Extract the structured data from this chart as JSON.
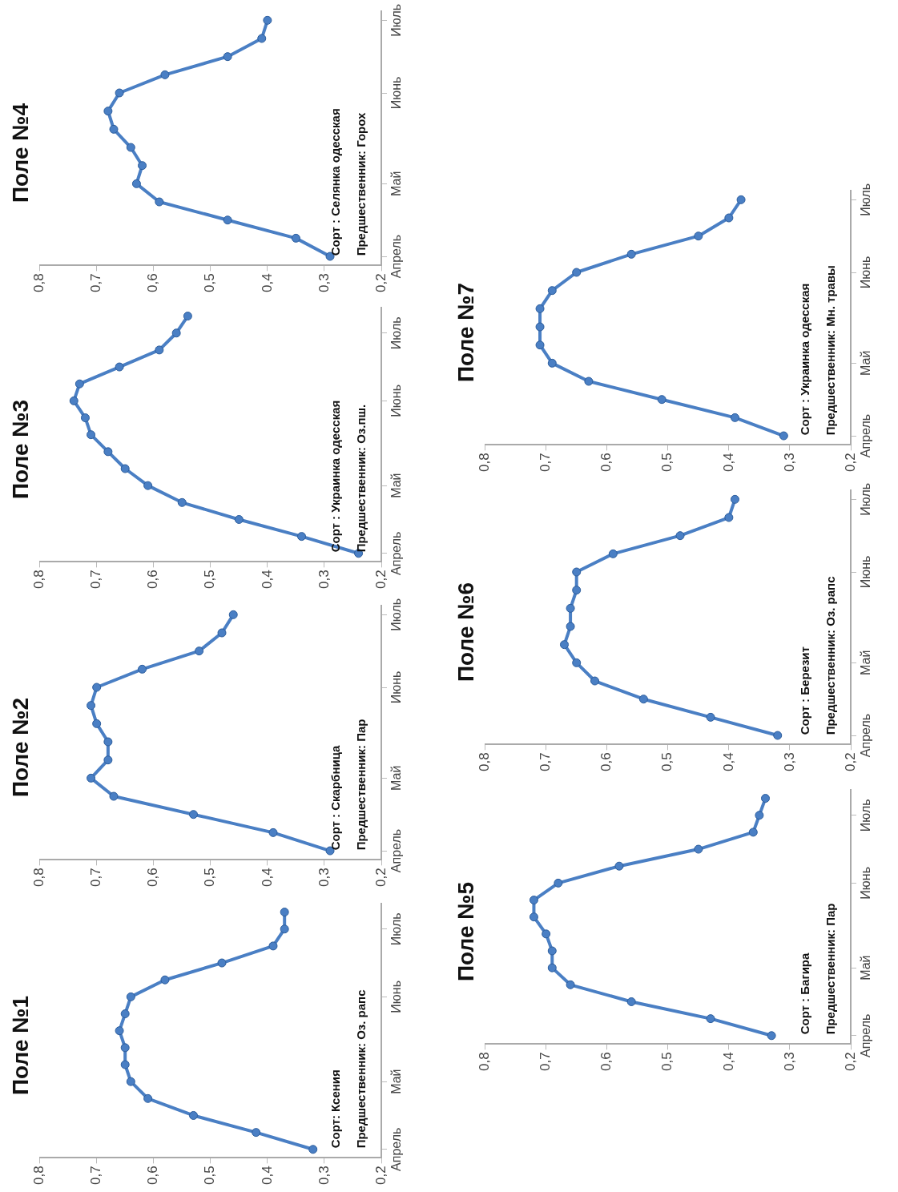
{
  "chart_data": [
    {
      "type": "line",
      "orientation": "horizontal",
      "title": "Поле №1",
      "annotations": [
        "Сорт: Ксения",
        "Предшественник: Оз. рапс"
      ],
      "categories": [
        null,
        "Июль",
        null,
        null,
        null,
        "Июнь",
        null,
        null,
        null,
        null,
        "Май",
        null,
        null,
        null,
        "Апрель"
      ],
      "xlim": [
        0.8,
        0.2
      ],
      "xticks": [
        {
          "value": 0.2,
          "label": "0,2"
        },
        {
          "value": 0.3,
          "label": "0,3"
        },
        {
          "value": 0.4,
          "label": "0,4"
        },
        {
          "value": 0.5,
          "label": "0,5"
        },
        {
          "value": 0.6,
          "label": "0,6"
        },
        {
          "value": 0.7,
          "label": "0,7"
        },
        {
          "value": 0.8,
          "label": "0,8"
        }
      ],
      "marker": "circle",
      "color": "#4a7fc4",
      "values": [
        0.37,
        0.37,
        0.39,
        0.48,
        0.58,
        0.64,
        0.65,
        0.66,
        0.65,
        0.65,
        0.64,
        0.61,
        0.53,
        0.42,
        0.32
      ]
    },
    {
      "type": "line",
      "orientation": "horizontal",
      "title": "Поле №2",
      "annotations": [
        "Сорт : Скарбница",
        "Предшественник: Пар"
      ],
      "categories": [
        "Июль",
        null,
        null,
        null,
        "Июнь",
        null,
        null,
        null,
        null,
        "Май",
        null,
        null,
        null,
        "Апрель"
      ],
      "xlim": [
        0.8,
        0.2
      ],
      "xticks": [
        {
          "value": 0.2,
          "label": "0,2"
        },
        {
          "value": 0.3,
          "label": "0,3"
        },
        {
          "value": 0.4,
          "label": "0,4"
        },
        {
          "value": 0.5,
          "label": "0,5"
        },
        {
          "value": 0.6,
          "label": "0,6"
        },
        {
          "value": 0.7,
          "label": "0,7"
        },
        {
          "value": 0.8,
          "label": "0,8"
        }
      ],
      "marker": "circle",
      "color": "#4a7fc4",
      "values": [
        0.46,
        0.48,
        0.52,
        0.62,
        0.7,
        0.71,
        0.7,
        0.68,
        0.68,
        0.71,
        0.67,
        0.53,
        0.39,
        0.29
      ]
    },
    {
      "type": "line",
      "orientation": "horizontal",
      "title": "Поле №3",
      "annotations": [
        "Сорт : Украинка одесская",
        "Предшественник: Оз.пш."
      ],
      "categories": [
        null,
        "Июль",
        null,
        null,
        null,
        "Июнь",
        null,
        null,
        null,
        null,
        "Май",
        null,
        null,
        null,
        "Апрель"
      ],
      "xlim": [
        0.8,
        0.2
      ],
      "xticks": [
        {
          "value": 0.2,
          "label": "0,2"
        },
        {
          "value": 0.3,
          "label": "0,3"
        },
        {
          "value": 0.4,
          "label": "0,4"
        },
        {
          "value": 0.5,
          "label": "0,5"
        },
        {
          "value": 0.6,
          "label": "0,6"
        },
        {
          "value": 0.7,
          "label": "0,7"
        },
        {
          "value": 0.8,
          "label": "0,8"
        }
      ],
      "marker": "circle",
      "color": "#4a7fc4",
      "values": [
        0.54,
        0.56,
        0.59,
        0.66,
        0.73,
        0.74,
        0.72,
        0.71,
        0.68,
        0.65,
        0.61,
        0.55,
        0.45,
        0.34,
        0.24
      ]
    },
    {
      "type": "line",
      "orientation": "horizontal",
      "title": "Поле №4",
      "annotations": [
        "Сорт : Селянка одесская",
        "Предшественник: Горох"
      ],
      "categories": [
        "Июль",
        null,
        null,
        null,
        "Июнь",
        null,
        null,
        null,
        null,
        "Май",
        null,
        null,
        null,
        "Апрель"
      ],
      "xlim": [
        0.8,
        0.2
      ],
      "xticks": [
        {
          "value": 0.2,
          "label": "0,2"
        },
        {
          "value": 0.3,
          "label": "0,3"
        },
        {
          "value": 0.4,
          "label": "0,4"
        },
        {
          "value": 0.5,
          "label": "0,5"
        },
        {
          "value": 0.6,
          "label": "0,6"
        },
        {
          "value": 0.7,
          "label": "0,7"
        },
        {
          "value": 0.8,
          "label": "0,8"
        }
      ],
      "marker": "circle",
      "color": "#4a7fc4",
      "values": [
        0.4,
        0.41,
        0.47,
        0.58,
        0.66,
        0.68,
        0.67,
        0.64,
        0.62,
        0.63,
        0.59,
        0.47,
        0.35,
        0.29
      ]
    },
    {
      "type": "line",
      "orientation": "horizontal",
      "title": "Поле №5",
      "annotations": [
        "Сорт : Багира",
        "Предшественник: Пар"
      ],
      "categories": [
        null,
        "Июль",
        null,
        null,
        null,
        "Июнь",
        null,
        null,
        null,
        null,
        "Май",
        null,
        null,
        null,
        "Апрель"
      ],
      "xlim": [
        0.8,
        0.2
      ],
      "xticks": [
        {
          "value": 0.2,
          "label": "0,2"
        },
        {
          "value": 0.3,
          "label": "0,3"
        },
        {
          "value": 0.4,
          "label": "0,4"
        },
        {
          "value": 0.5,
          "label": "0,5"
        },
        {
          "value": 0.6,
          "label": "0,6"
        },
        {
          "value": 0.7,
          "label": "0,7"
        },
        {
          "value": 0.8,
          "label": "0,8"
        }
      ],
      "marker": "circle",
      "color": "#4a7fc4",
      "values": [
        0.34,
        0.35,
        0.36,
        0.45,
        0.58,
        0.68,
        0.72,
        0.72,
        0.7,
        0.69,
        0.69,
        0.66,
        0.56,
        0.43,
        0.33
      ]
    },
    {
      "type": "line",
      "orientation": "horizontal",
      "title": "Поле №6",
      "annotations": [
        "Сорт : Березит",
        "Предшественник: Оз. рапс"
      ],
      "categories": [
        "Июль",
        null,
        null,
        null,
        "Июнь",
        null,
        null,
        null,
        null,
        "Май",
        null,
        null,
        null,
        "Апрель"
      ],
      "xlim": [
        0.8,
        0.2
      ],
      "xticks": [
        {
          "value": 0.2,
          "label": "0,2"
        },
        {
          "value": 0.3,
          "label": "0,3"
        },
        {
          "value": 0.4,
          "label": "0,4"
        },
        {
          "value": 0.5,
          "label": "0,5"
        },
        {
          "value": 0.6,
          "label": "0,6"
        },
        {
          "value": 0.7,
          "label": "0,7"
        },
        {
          "value": 0.8,
          "label": "0,8"
        }
      ],
      "marker": "circle",
      "color": "#4a7fc4",
      "values": [
        0.39,
        0.4,
        0.48,
        0.59,
        0.65,
        0.65,
        0.66,
        0.66,
        0.67,
        0.65,
        0.62,
        0.54,
        0.43,
        0.32
      ]
    },
    {
      "type": "line",
      "orientation": "horizontal",
      "title": "Поле №7",
      "annotations": [
        "Сорт : Украинка одесская",
        "Предшественник: Мн. травы"
      ],
      "categories": [
        "Июль",
        null,
        null,
        null,
        "Июнь",
        null,
        null,
        null,
        null,
        "Май",
        null,
        null,
        null,
        "Апрель"
      ],
      "xlim": [
        0.8,
        0.2
      ],
      "xticks": [
        {
          "value": 0.2,
          "label": "0,2"
        },
        {
          "value": 0.3,
          "label": "0,3"
        },
        {
          "value": 0.4,
          "label": "0,4"
        },
        {
          "value": 0.5,
          "label": "0,5"
        },
        {
          "value": 0.6,
          "label": "0,6"
        },
        {
          "value": 0.7,
          "label": "0,7"
        },
        {
          "value": 0.8,
          "label": "0,8"
        }
      ],
      "marker": "circle",
      "color": "#4a7fc4",
      "values": [
        0.38,
        0.4,
        0.45,
        0.56,
        0.65,
        0.69,
        0.71,
        0.71,
        0.71,
        0.69,
        0.63,
        0.51,
        0.39,
        0.31
      ]
    }
  ]
}
